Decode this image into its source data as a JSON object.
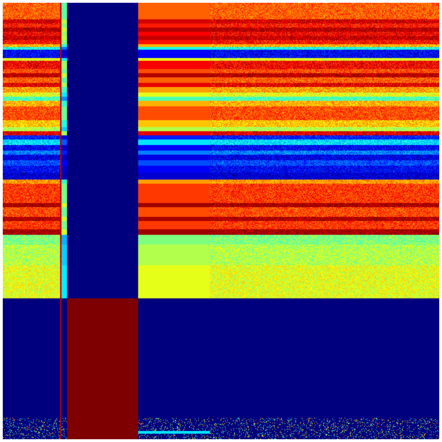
{
  "chart_data": {
    "type": "heatmap",
    "colormap": "jet",
    "title": "",
    "xlabel": "",
    "ylabel": "",
    "grid": false,
    "legend": "none"
  },
  "colors": {
    "low": "#00007f",
    "high": "#7f0000",
    "background": "#ffffff"
  }
}
